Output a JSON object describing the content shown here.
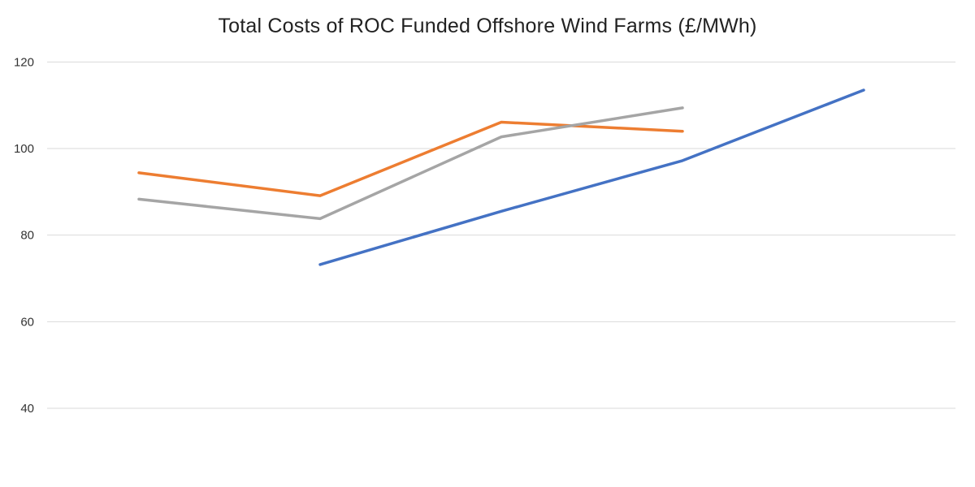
{
  "chart_data": {
    "type": "line",
    "title": "Total Costs of ROC Funded Offshore Wind Farms (£/MWh)",
    "xlabel": "",
    "ylabel": "",
    "ylim": [
      33,
      122
    ],
    "yticks": [
      40,
      60,
      80,
      100,
      120
    ],
    "grid": true,
    "categories": [
      "",
      "",
      "",
      "",
      ""
    ],
    "series": [
      {
        "color": "#ED7D31",
        "values": [
          94.4,
          89.1,
          106.1,
          104.0,
          null
        ]
      },
      {
        "color": "#A5A5A5",
        "values": [
          88.3,
          83.8,
          102.7,
          109.4,
          null
        ]
      },
      {
        "color": "#4472C4",
        "values": [
          null,
          73.2,
          85.5,
          97.2,
          113.5
        ]
      }
    ]
  }
}
